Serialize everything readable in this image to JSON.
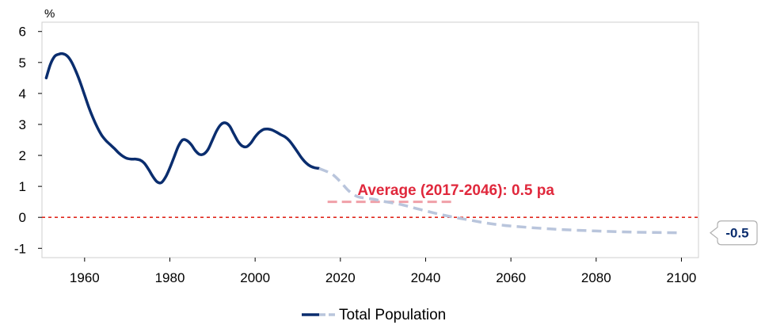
{
  "chart_data": {
    "type": "line",
    "ylabel": "%",
    "xlim": [
      1950,
      2104
    ],
    "ylim": [
      -1.3,
      6.3
    ],
    "x_ticks": [
      1960,
      1980,
      2000,
      2020,
      2040,
      2060,
      2080,
      2100
    ],
    "y_ticks": [
      6,
      5,
      4,
      3,
      2,
      1,
      0,
      -1
    ],
    "grid": false,
    "legend_position": "bottom-center",
    "legend": {
      "label": "Total Population"
    },
    "series": [
      {
        "name": "Total Population",
        "segment": "historical",
        "color": "#0a2d6e",
        "points": [
          [
            1951,
            4.5
          ],
          [
            1952,
            4.95
          ],
          [
            1953,
            5.2
          ],
          [
            1954,
            5.27
          ],
          [
            1955,
            5.28
          ],
          [
            1956,
            5.2
          ],
          [
            1957,
            5.0
          ],
          [
            1958,
            4.7
          ],
          [
            1959,
            4.35
          ],
          [
            1960,
            3.95
          ],
          [
            1961,
            3.55
          ],
          [
            1962,
            3.2
          ],
          [
            1963,
            2.9
          ],
          [
            1964,
            2.65
          ],
          [
            1965,
            2.48
          ],
          [
            1966,
            2.35
          ],
          [
            1967,
            2.22
          ],
          [
            1968,
            2.08
          ],
          [
            1969,
            1.97
          ],
          [
            1970,
            1.9
          ],
          [
            1971,
            1.88
          ],
          [
            1972,
            1.88
          ],
          [
            1973,
            1.85
          ],
          [
            1974,
            1.75
          ],
          [
            1975,
            1.55
          ],
          [
            1976,
            1.32
          ],
          [
            1977,
            1.15
          ],
          [
            1978,
            1.12
          ],
          [
            1979,
            1.3
          ],
          [
            1980,
            1.6
          ],
          [
            1981,
            1.95
          ],
          [
            1982,
            2.3
          ],
          [
            1983,
            2.5
          ],
          [
            1984,
            2.48
          ],
          [
            1985,
            2.35
          ],
          [
            1986,
            2.15
          ],
          [
            1987,
            2.03
          ],
          [
            1988,
            2.05
          ],
          [
            1989,
            2.2
          ],
          [
            1990,
            2.5
          ],
          [
            1991,
            2.8
          ],
          [
            1992,
            3.0
          ],
          [
            1993,
            3.05
          ],
          [
            1994,
            2.95
          ],
          [
            1995,
            2.7
          ],
          [
            1996,
            2.45
          ],
          [
            1997,
            2.3
          ],
          [
            1998,
            2.28
          ],
          [
            1999,
            2.4
          ],
          [
            2000,
            2.6
          ],
          [
            2001,
            2.75
          ],
          [
            2002,
            2.84
          ],
          [
            2003,
            2.85
          ],
          [
            2004,
            2.82
          ],
          [
            2005,
            2.75
          ],
          [
            2006,
            2.67
          ],
          [
            2007,
            2.6
          ],
          [
            2008,
            2.48
          ],
          [
            2009,
            2.3
          ],
          [
            2010,
            2.1
          ],
          [
            2011,
            1.9
          ],
          [
            2012,
            1.75
          ],
          [
            2013,
            1.65
          ],
          [
            2014,
            1.6
          ],
          [
            2015,
            1.58
          ]
        ]
      },
      {
        "segment": "projection",
        "color": "#b9c5dc",
        "dashed": true,
        "points": [
          [
            2015,
            1.58
          ],
          [
            2018,
            1.4
          ],
          [
            2020,
            1.15
          ],
          [
            2022,
            0.85
          ],
          [
            2024,
            0.67
          ],
          [
            2026,
            0.62
          ],
          [
            2028,
            0.58
          ],
          [
            2030,
            0.52
          ],
          [
            2034,
            0.42
          ],
          [
            2038,
            0.28
          ],
          [
            2042,
            0.14
          ],
          [
            2046,
            0.02
          ],
          [
            2050,
            -0.08
          ],
          [
            2055,
            -0.2
          ],
          [
            2060,
            -0.28
          ],
          [
            2070,
            -0.38
          ],
          [
            2080,
            -0.44
          ],
          [
            2090,
            -0.48
          ],
          [
            2100,
            -0.5
          ]
        ]
      }
    ],
    "reference_lines": [
      {
        "y": 0,
        "color": "#e0281e",
        "style": "dotted"
      },
      {
        "y": 0.5,
        "x_range": [
          2017,
          2046
        ],
        "color": "#f0a0a8",
        "style": "dashed"
      }
    ],
    "annotations": [
      {
        "text": "Average (2017-2046): 0.5 pa",
        "x": 2024,
        "y": 0.9,
        "color": "#e0283c"
      }
    ],
    "end_label": {
      "text": "-0.5",
      "y": -0.5
    }
  }
}
